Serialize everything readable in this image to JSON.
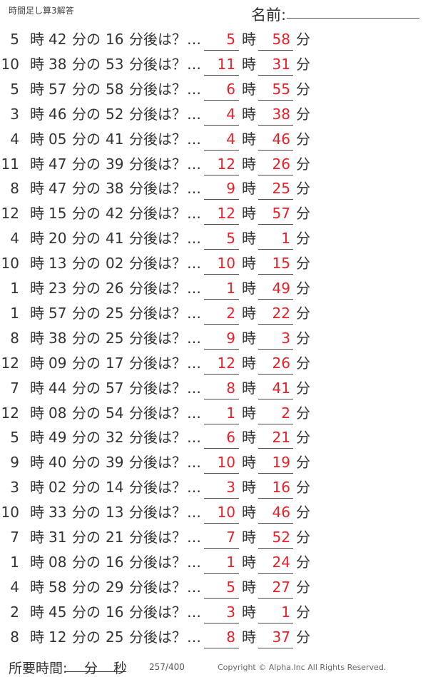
{
  "header": {
    "title": "時間足し算3解答",
    "name_label": "名前:"
  },
  "labels": {
    "hour": "時",
    "minute_of": "分の",
    "minutes_later": "分後は？",
    "ellipsis": "…",
    "minute": "分"
  },
  "problems": [
    {
      "h": "5",
      "m": "42",
      "add": "16",
      "ah": "5",
      "am": "58"
    },
    {
      "h": "10",
      "m": "38",
      "add": "53",
      "ah": "11",
      "am": "31"
    },
    {
      "h": "5",
      "m": "57",
      "add": "58",
      "ah": "6",
      "am": "55"
    },
    {
      "h": "3",
      "m": "46",
      "add": "52",
      "ah": "4",
      "am": "38"
    },
    {
      "h": "4",
      "m": "05",
      "add": "41",
      "ah": "4",
      "am": "46"
    },
    {
      "h": "11",
      "m": "47",
      "add": "39",
      "ah": "12",
      "am": "26"
    },
    {
      "h": "8",
      "m": "47",
      "add": "38",
      "ah": "9",
      "am": "25"
    },
    {
      "h": "12",
      "m": "15",
      "add": "42",
      "ah": "12",
      "am": "57"
    },
    {
      "h": "4",
      "m": "20",
      "add": "41",
      "ah": "5",
      "am": "1"
    },
    {
      "h": "10",
      "m": "13",
      "add": "02",
      "ah": "10",
      "am": "15"
    },
    {
      "h": "1",
      "m": "23",
      "add": "26",
      "ah": "1",
      "am": "49"
    },
    {
      "h": "1",
      "m": "57",
      "add": "25",
      "ah": "2",
      "am": "22"
    },
    {
      "h": "8",
      "m": "38",
      "add": "25",
      "ah": "9",
      "am": "3"
    },
    {
      "h": "12",
      "m": "09",
      "add": "17",
      "ah": "12",
      "am": "26"
    },
    {
      "h": "7",
      "m": "44",
      "add": "57",
      "ah": "8",
      "am": "41"
    },
    {
      "h": "12",
      "m": "08",
      "add": "54",
      "ah": "1",
      "am": "2"
    },
    {
      "h": "5",
      "m": "49",
      "add": "32",
      "ah": "6",
      "am": "21"
    },
    {
      "h": "9",
      "m": "40",
      "add": "39",
      "ah": "10",
      "am": "19"
    },
    {
      "h": "3",
      "m": "02",
      "add": "14",
      "ah": "3",
      "am": "16"
    },
    {
      "h": "10",
      "m": "33",
      "add": "13",
      "ah": "10",
      "am": "46"
    },
    {
      "h": "7",
      "m": "31",
      "add": "21",
      "ah": "7",
      "am": "52"
    },
    {
      "h": "1",
      "m": "08",
      "add": "16",
      "ah": "1",
      "am": "24"
    },
    {
      "h": "4",
      "m": "58",
      "add": "29",
      "ah": "5",
      "am": "27"
    },
    {
      "h": "2",
      "m": "45",
      "add": "16",
      "ah": "3",
      "am": "1"
    },
    {
      "h": "8",
      "m": "12",
      "add": "25",
      "ah": "8",
      "am": "37"
    }
  ],
  "footer": {
    "time_label": "所要時間:",
    "min": "分",
    "sec": "秒",
    "page": "257/400",
    "copyright": "Copyright ©  Alpha.Inc All Rights Reserved."
  },
  "colors": {
    "answer": "#e8202a",
    "text": "#333333"
  }
}
